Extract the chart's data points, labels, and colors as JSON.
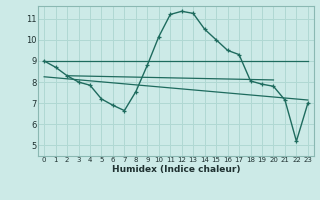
{
  "xlabel": "Humidex (Indice chaleur)",
  "bg_color": "#cceae7",
  "grid_color": "#b0d8d3",
  "line_color": "#1e6b5e",
  "spine_color": "#8ab8b2",
  "xlim": [
    -0.5,
    23.5
  ],
  "ylim": [
    4.5,
    11.6
  ],
  "xticks": [
    0,
    1,
    2,
    3,
    4,
    5,
    6,
    7,
    8,
    9,
    10,
    11,
    12,
    13,
    14,
    15,
    16,
    17,
    18,
    19,
    20,
    21,
    22,
    23
  ],
  "yticks": [
    5,
    6,
    7,
    8,
    9,
    10,
    11
  ],
  "main_line": {
    "x": [
      0,
      1,
      2,
      3,
      4,
      5,
      6,
      7,
      8,
      9,
      10,
      11,
      12,
      13,
      14,
      15,
      16,
      17,
      18,
      19,
      20,
      21,
      22,
      23
    ],
    "y": [
      9.0,
      8.7,
      8.3,
      8.0,
      7.85,
      7.2,
      6.9,
      6.65,
      7.55,
      8.8,
      10.15,
      11.2,
      11.35,
      11.25,
      10.5,
      10.0,
      9.5,
      9.3,
      8.05,
      7.9,
      7.8,
      7.15,
      5.2,
      7.0
    ]
  },
  "flat_line1": {
    "x": [
      0,
      23
    ],
    "y": [
      9.0,
      9.0
    ]
  },
  "flat_line2": {
    "x": [
      2,
      20
    ],
    "y": [
      8.3,
      8.1
    ]
  },
  "diag_line": {
    "x": [
      0,
      23
    ],
    "y": [
      8.25,
      7.15
    ]
  }
}
